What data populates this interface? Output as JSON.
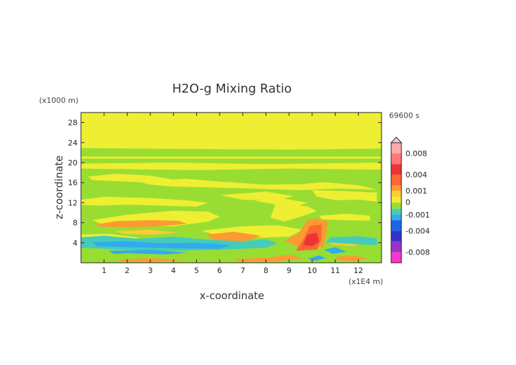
{
  "chart_data": {
    "type": "heatmap",
    "title": "H2O-g Mixing Ratio",
    "xlabel": "x-coordinate",
    "ylabel": "z-coordinate",
    "x_unit": "(x1E4 m)",
    "y_unit": "(x1000 m)",
    "time_label": "69600 s",
    "xlim": [
      0,
      13
    ],
    "ylim": [
      0,
      30
    ],
    "x_ticks": [
      "1",
      "2",
      "3",
      "4",
      "5",
      "6",
      "7",
      "8",
      "9",
      "10",
      "11",
      "12"
    ],
    "y_ticks": [
      "4",
      "8",
      "12",
      "16",
      "20",
      "24",
      "28"
    ],
    "colorbar_labels": [
      "0.008",
      "0.004",
      "0.001",
      "0",
      "-0.001",
      "-0.004",
      "-0.008"
    ],
    "colorbar_values": [
      0.008,
      0.004,
      0.001,
      0,
      -0.001,
      -0.004,
      -0.008
    ],
    "colorbar_range": [
      -0.01,
      0.01
    ],
    "color_scale": [
      {
        "from": -0.01,
        "to": -0.008,
        "color": "#ff33cc"
      },
      {
        "from": -0.008,
        "to": -0.006,
        "color": "#9933cc"
      },
      {
        "from": -0.006,
        "to": -0.004,
        "color": "#3333cc"
      },
      {
        "from": -0.004,
        "to": -0.002,
        "color": "#1a66e6"
      },
      {
        "from": -0.002,
        "to": -0.001,
        "color": "#33aaee"
      },
      {
        "from": -0.001,
        "to": -0.0005,
        "color": "#44ccbb"
      },
      {
        "from": -0.0005,
        "to": 0,
        "color": "#99dd33"
      },
      {
        "from": 0,
        "to": 0.0005,
        "color": "#eeee33"
      },
      {
        "from": 0.0005,
        "to": 0.001,
        "color": "#ffcc33"
      },
      {
        "from": 0.001,
        "to": 0.002,
        "color": "#ff9933"
      },
      {
        "from": 0.002,
        "to": 0.004,
        "color": "#ff6633"
      },
      {
        "from": 0.004,
        "to": 0.006,
        "color": "#ee3333"
      },
      {
        "from": 0.006,
        "to": 0.008,
        "color": "#ff7777"
      },
      {
        "from": 0.008,
        "to": 0.01,
        "color": "#ffaaaa"
      }
    ],
    "regions": [
      {
        "value": 0.0002,
        "color": "#eeee33",
        "poly": [
          [
            0,
            0
          ],
          [
            13,
            0
          ],
          [
            13,
            30
          ],
          [
            0,
            30
          ]
        ]
      },
      {
        "value": -0.0003,
        "color": "#99dd33",
        "poly": [
          [
            0,
            0
          ],
          [
            13,
            0
          ],
          [
            13,
            22.8
          ],
          [
            9,
            22.6
          ],
          [
            5,
            22.7
          ],
          [
            0,
            22.9
          ]
        ]
      },
      {
        "value": 0.0002,
        "color": "#eeee33",
        "poly": [
          [
            0,
            21.2
          ],
          [
            13,
            21.2
          ],
          [
            13,
            20.8
          ],
          [
            0,
            20.8
          ]
        ]
      },
      {
        "value": 0.0002,
        "color": "#eeee33",
        "poly": [
          [
            0,
            19.8
          ],
          [
            4,
            20
          ],
          [
            8,
            19.7
          ],
          [
            13,
            20
          ],
          [
            13,
            18.6
          ],
          [
            9,
            18.8
          ],
          [
            5,
            18.5
          ],
          [
            0,
            18.8
          ]
        ]
      },
      {
        "value": 0.0002,
        "color": "#eeee33",
        "poly": [
          [
            0.3,
            17.2
          ],
          [
            1.5,
            17.8
          ],
          [
            3,
            17.4
          ],
          [
            4,
            16.6
          ],
          [
            3,
            16
          ],
          [
            1.5,
            16.3
          ],
          [
            0.5,
            16.5
          ]
        ]
      },
      {
        "value": 0.0002,
        "color": "#eeee33",
        "poly": [
          [
            2.5,
            16.2
          ],
          [
            4.5,
            16.8
          ],
          [
            6,
            16.2
          ],
          [
            8,
            15.6
          ],
          [
            9.5,
            15.7
          ],
          [
            10.5,
            16.1
          ],
          [
            12,
            15.5
          ],
          [
            12.8,
            14.6
          ],
          [
            11,
            14.8
          ],
          [
            9.5,
            14.5
          ],
          [
            7.5,
            14.8
          ],
          [
            6,
            15
          ],
          [
            4,
            15.2
          ],
          [
            3,
            15.6
          ]
        ]
      },
      {
        "value": 0.0002,
        "color": "#eeee33",
        "poly": [
          [
            0,
            12.6
          ],
          [
            1,
            13.2
          ],
          [
            3,
            12.9
          ],
          [
            4.5,
            12.5
          ],
          [
            5.5,
            12
          ],
          [
            5,
            11.2
          ],
          [
            3.5,
            11.4
          ],
          [
            2,
            11.6
          ],
          [
            0.8,
            11.4
          ],
          [
            0,
            11.6
          ]
        ]
      },
      {
        "value": 0.0002,
        "color": "#eeee33",
        "poly": [
          [
            6,
            13.5
          ],
          [
            8,
            14.2
          ],
          [
            9.2,
            13.3
          ],
          [
            8.5,
            12.4
          ],
          [
            7,
            12.6
          ]
        ]
      },
      {
        "value": 0.0002,
        "color": "#eeee33",
        "poly": [
          [
            7.5,
            12.4
          ],
          [
            8.8,
            12.8
          ],
          [
            9.8,
            12
          ],
          [
            9.2,
            11
          ]
        ]
      },
      {
        "value": 0.0002,
        "color": "#eeee33",
        "poly": [
          [
            10,
            14.5
          ],
          [
            11.5,
            14.3
          ],
          [
            12.8,
            14
          ],
          [
            12.8,
            12.2
          ],
          [
            12,
            12.6
          ],
          [
            11,
            12.5
          ],
          [
            10.2,
            13.2
          ]
        ]
      },
      {
        "value": 0.0002,
        "color": "#eeee33",
        "poly": [
          [
            0.5,
            8.5
          ],
          [
            2,
            9.6
          ],
          [
            4,
            10.4
          ],
          [
            5.5,
            10.2
          ],
          [
            6,
            9.2
          ],
          [
            5.5,
            8.2
          ],
          [
            4,
            7.3
          ],
          [
            2.5,
            7.2
          ],
          [
            1,
            7.5
          ]
        ]
      },
      {
        "value": 0.0002,
        "color": "#eeee33",
        "poly": [
          [
            8.4,
            11.6
          ],
          [
            9.8,
            11.3
          ],
          [
            10.2,
            10.3
          ],
          [
            9.5,
            9.2
          ],
          [
            8.8,
            8.2
          ],
          [
            8.2,
            9
          ]
        ]
      },
      {
        "value": 0.0002,
        "color": "#eeee33",
        "poly": [
          [
            10.3,
            9.4
          ],
          [
            11.5,
            9.8
          ],
          [
            12.5,
            9.4
          ],
          [
            12.5,
            8.4
          ],
          [
            11.2,
            8.5
          ],
          [
            10.4,
            8.7
          ]
        ]
      },
      {
        "value": 0.0002,
        "color": "#eeee33",
        "poly": [
          [
            5.2,
            6.4
          ],
          [
            7,
            7.3
          ],
          [
            8.5,
            7.5
          ],
          [
            9.6,
            6.6
          ],
          [
            9,
            5.2
          ],
          [
            7.5,
            5
          ],
          [
            6,
            5.3
          ]
        ]
      },
      {
        "value": 0.0002,
        "color": "#eeee33",
        "poly": [
          [
            0,
            5.6
          ],
          [
            1.2,
            5.8
          ],
          [
            2.5,
            5
          ],
          [
            2,
            4.2
          ],
          [
            0.8,
            4.3
          ],
          [
            0,
            4.6
          ]
        ]
      },
      {
        "value": 0.0015,
        "color": "#ff9933",
        "poly": [
          [
            0.6,
            7.6
          ],
          [
            1.5,
            8.3
          ],
          [
            3,
            8.5
          ],
          [
            4.2,
            8.4
          ],
          [
            4.6,
            7.8
          ],
          [
            3.5,
            7.3
          ],
          [
            2,
            7.1
          ],
          [
            0.8,
            7.2
          ]
        ]
      },
      {
        "value": 0.0015,
        "color": "#ff9933",
        "poly": [
          [
            5.4,
            5.6
          ],
          [
            6.6,
            6.2
          ],
          [
            7.8,
            5.4
          ],
          [
            7.2,
            4.4
          ],
          [
            5.9,
            4.3
          ]
        ]
      },
      {
        "value": 0.0015,
        "color": "#ff9933",
        "poly": [
          [
            8.8,
            4.4
          ],
          [
            9.4,
            5.8
          ],
          [
            9.8,
            8.5
          ],
          [
            10.2,
            8.9
          ],
          [
            10.7,
            8.2
          ],
          [
            10.6,
            5.8
          ],
          [
            10.5,
            3.2
          ],
          [
            9.5,
            3
          ]
        ]
      },
      {
        "value": 0.0005,
        "color": "#ffcc33",
        "poly": [
          [
            1.5,
            6.3
          ],
          [
            3,
            6.6
          ],
          [
            4.2,
            6
          ],
          [
            3,
            5.6
          ],
          [
            1.8,
            5.8
          ]
        ]
      },
      {
        "value": 0.0005,
        "color": "#ffcc33",
        "poly": [
          [
            10.7,
            4.2
          ],
          [
            11.6,
            4.8
          ],
          [
            12.5,
            4.2
          ],
          [
            11.8,
            3.4
          ],
          [
            10.9,
            3.6
          ]
        ]
      },
      {
        "value": -0.0007,
        "color": "#44ccbb",
        "poly": [
          [
            0,
            5.1
          ],
          [
            1,
            5.4
          ],
          [
            2.5,
            4.8
          ],
          [
            4,
            5.2
          ],
          [
            5.5,
            4.6
          ],
          [
            7,
            4.3
          ],
          [
            8,
            4.7
          ],
          [
            8.5,
            3.9
          ],
          [
            8,
            3
          ],
          [
            6,
            2.6
          ],
          [
            4,
            2.4
          ],
          [
            2,
            2.6
          ],
          [
            0,
            3
          ]
        ]
      },
      {
        "value": -0.0007,
        "color": "#44ccbb",
        "poly": [
          [
            10.8,
            5.1
          ],
          [
            12,
            5.3
          ],
          [
            12.8,
            4.9
          ],
          [
            12.8,
            3.5
          ],
          [
            11.5,
            3.8
          ],
          [
            10.6,
            4.1
          ]
        ]
      },
      {
        "value": -0.0015,
        "color": "#33aaee",
        "poly": [
          [
            0.5,
            4.1
          ],
          [
            2,
            4.3
          ],
          [
            3.5,
            3.9
          ],
          [
            5,
            4
          ],
          [
            6.5,
            3.5
          ],
          [
            6,
            2.8
          ],
          [
            4,
            2.9
          ],
          [
            2,
            3.1
          ],
          [
            0.7,
            3.3
          ]
        ]
      },
      {
        "value": -0.0015,
        "color": "#33aaee",
        "poly": [
          [
            1.2,
            2.4
          ],
          [
            3,
            2.6
          ],
          [
            4.6,
            2
          ],
          [
            3,
            1.4
          ],
          [
            1.5,
            1.5
          ]
        ]
      },
      {
        "value": -0.0015,
        "color": "#33aaee",
        "poly": [
          [
            5,
            1.6
          ],
          [
            6.8,
            1.8
          ],
          [
            7.6,
            1.2
          ],
          [
            6,
            0.8
          ],
          [
            5.2,
            1
          ]
        ]
      },
      {
        "value": -0.0015,
        "color": "#33aaee",
        "poly": [
          [
            10.5,
            2.6
          ],
          [
            11,
            3.1
          ],
          [
            11.5,
            2.2
          ],
          [
            10.9,
            1.8
          ]
        ]
      },
      {
        "value": -0.0003,
        "color": "#99dd33",
        "poly": [
          [
            0,
            1.4
          ],
          [
            2,
            1.9
          ],
          [
            4,
            1.6
          ],
          [
            6,
            2
          ],
          [
            8,
            1.6
          ],
          [
            10,
            1.8
          ],
          [
            12,
            1.6
          ],
          [
            13,
            1.4
          ],
          [
            13,
            0.6
          ],
          [
            0,
            0.8
          ]
        ]
      },
      {
        "value": 0.0015,
        "color": "#ff9933",
        "poly": [
          [
            1.5,
            0.6
          ],
          [
            3,
            0.9
          ],
          [
            4.5,
            0.5
          ],
          [
            3,
            0.1
          ],
          [
            1.8,
            0.2
          ]
        ]
      },
      {
        "value": 0.0015,
        "color": "#ff9933",
        "poly": [
          [
            6.5,
            0.7
          ],
          [
            8,
            1
          ],
          [
            9,
            1.6
          ],
          [
            9.6,
            0.9
          ],
          [
            8.5,
            0.3
          ],
          [
            7,
            0.2
          ]
        ]
      },
      {
        "value": 0.0015,
        "color": "#ff9933",
        "poly": [
          [
            11,
            1.2
          ],
          [
            11.8,
            1.4
          ],
          [
            12.4,
            0.9
          ],
          [
            11.8,
            0.3
          ],
          [
            11.1,
            0.5
          ]
        ]
      },
      {
        "value": 0.003,
        "color": "#ff6633",
        "poly": [
          [
            9.3,
            2.4
          ],
          [
            9.6,
            4.5
          ],
          [
            9.9,
            7.4
          ],
          [
            10.4,
            7.6
          ],
          [
            10.4,
            4.8
          ],
          [
            10.2,
            2.6
          ]
        ]
      },
      {
        "value": 0.005,
        "color": "#ee3333",
        "poly": [
          [
            9.6,
            3.6
          ],
          [
            9.8,
            5.6
          ],
          [
            10.2,
            6
          ],
          [
            10.3,
            4.2
          ],
          [
            10,
            3.3
          ]
        ]
      },
      {
        "value": -0.0015,
        "color": "#33aaee",
        "poly": [
          [
            9.8,
            0.8
          ],
          [
            10.3,
            1.5
          ],
          [
            10.6,
            0.9
          ],
          [
            10.1,
            0.4
          ]
        ]
      }
    ]
  }
}
